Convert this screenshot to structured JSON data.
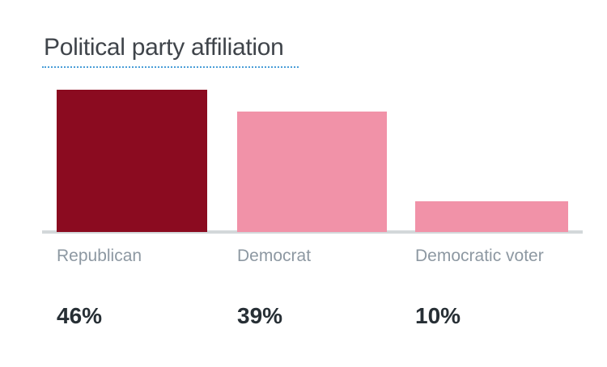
{
  "chart_data": {
    "type": "bar",
    "title": "Political party affiliation",
    "categories": [
      "Republican",
      "Democrat",
      "Democratic voter"
    ],
    "values": [
      46,
      39,
      10
    ],
    "value_labels": [
      "46%",
      "39%",
      "10%"
    ],
    "series": [
      {
        "name": "Political party affiliation",
        "values": [
          46,
          39,
          10
        ]
      }
    ],
    "xlabel": "",
    "ylabel": "",
    "ylim": [
      0,
      50
    ],
    "grid": false,
    "legend": false,
    "colors": {
      "bar_colors": [
        "#8b0b20",
        "#f192a8",
        "#f192a8"
      ],
      "axis_line": "#d3d8da",
      "title_text": "#3f444a",
      "title_underline": "#4a9ed8",
      "category_label": "#8d98a2",
      "value_label": "#272f35",
      "background": "#ffffff"
    }
  }
}
